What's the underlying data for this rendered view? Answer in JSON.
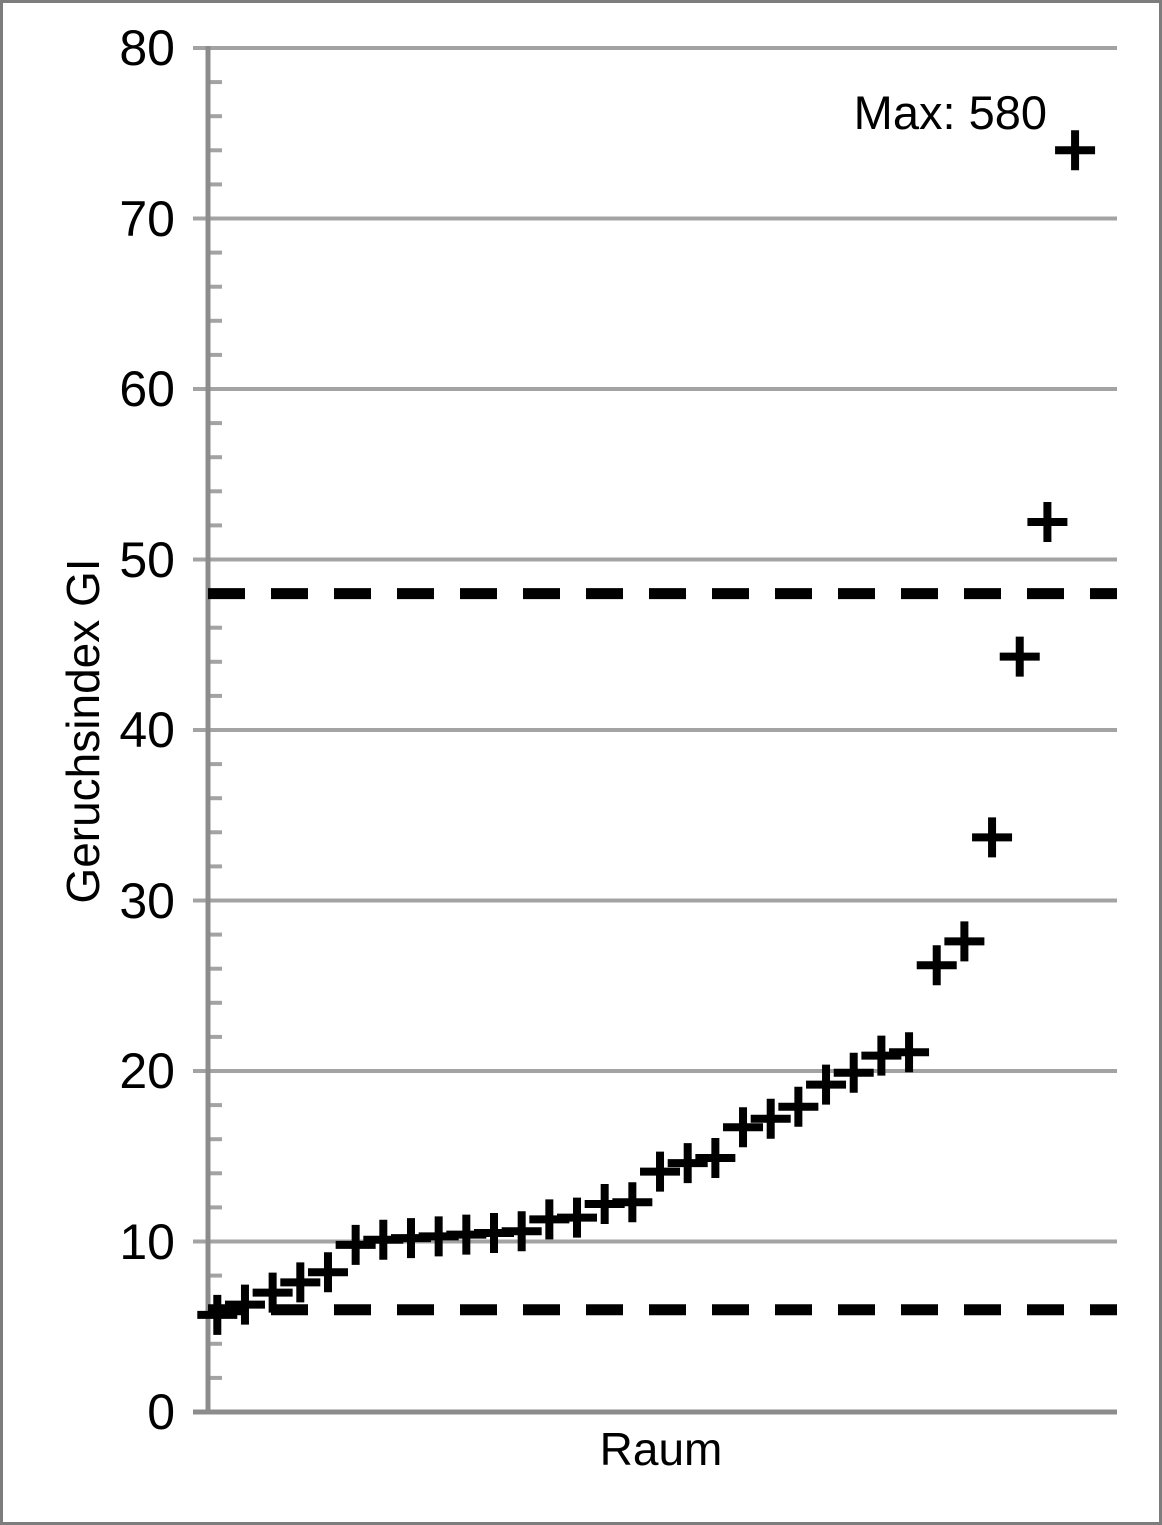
{
  "chart_data": {
    "type": "scatter",
    "title": "",
    "xlabel": "Raum",
    "ylabel": "Geruchsindex GI",
    "ylim": [
      0,
      80
    ],
    "yticks": [
      0,
      10,
      20,
      30,
      40,
      50,
      60,
      70,
      80
    ],
    "ytick_interval": 10,
    "minor_tick_interval": 2,
    "grid": "horizontal-major",
    "legend": "none",
    "x_axis_tick_labels": "none",
    "series": [
      {
        "marker": "plus",
        "color": "#000000",
        "values": [
          5.7,
          6.3,
          7.0,
          7.6,
          8.2,
          9.8,
          10.1,
          10.2,
          10.3,
          10.4,
          10.5,
          10.6,
          11.3,
          11.4,
          12.2,
          12.3,
          14.1,
          14.6,
          14.9,
          16.7,
          17.2,
          17.9,
          19.2,
          19.9,
          20.9,
          21.1,
          26.2,
          27.6,
          33.7,
          44.3,
          52.2,
          74.0
        ]
      }
    ],
    "annotation": {
      "text": "Max: 580",
      "refers_to": "topmost data point, clipped at top of y-scale"
    },
    "reference_lines": [
      {
        "value": 48,
        "style": "dashed",
        "color": "#000000"
      },
      {
        "value": 6,
        "style": "dashed",
        "color": "#000000"
      }
    ],
    "colors": {
      "marker": "#000000",
      "gridline": "#a3a3a3",
      "axis": "#8c8c8c",
      "reference_line": "#000000",
      "text": "#000000",
      "frame_border": "#7d7d7d",
      "background": "#ffffff"
    }
  }
}
